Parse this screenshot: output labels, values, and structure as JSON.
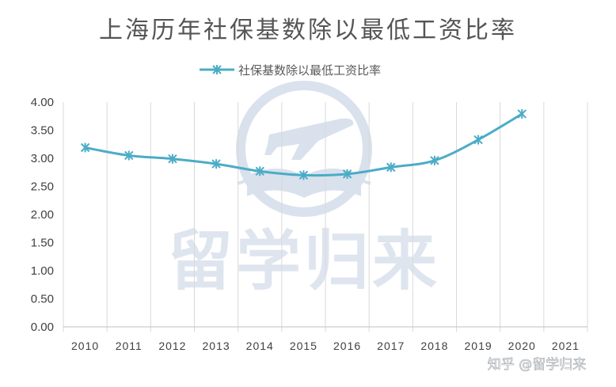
{
  "chart_data": {
    "type": "line",
    "title": "上海历年社保基数除以最低工资比率",
    "legend_position": "top-center",
    "grid": {
      "vertical": true,
      "horizontal": false
    },
    "categories": [
      "2010",
      "2011",
      "2012",
      "2013",
      "2014",
      "2015",
      "2016",
      "2017",
      "2018",
      "2019",
      "2020",
      "2021"
    ],
    "y_ticks": [
      "0.00",
      "0.50",
      "1.00",
      "1.50",
      "2.00",
      "2.50",
      "3.00",
      "3.50",
      "4.00"
    ],
    "ylim": [
      0,
      4
    ],
    "series": [
      {
        "name": "社保基数除以最低工资比率",
        "color": "#4bacc6",
        "values": [
          3.19,
          3.05,
          2.99,
          2.9,
          2.77,
          2.7,
          2.72,
          2.84,
          2.96,
          3.33,
          3.79,
          null
        ]
      }
    ]
  },
  "watermark": {
    "text": "留学归来",
    "icon": "airplane-book-logo-icon"
  },
  "credit": {
    "text": "知乎 @留学归来"
  }
}
